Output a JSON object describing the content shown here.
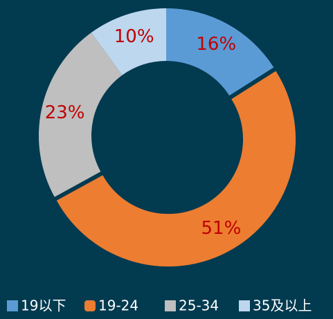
{
  "chart_data": {
    "type": "donut",
    "categories": [
      "19以下",
      "19-24",
      "25-34",
      "35及以上"
    ],
    "values": [
      16,
      51,
      23,
      10
    ],
    "value_labels": [
      "16%",
      "51%",
      "23%",
      "10%"
    ],
    "colors": [
      "#5b9bd5",
      "#ed7d31",
      "#bfbfbf",
      "#bdd7ee"
    ],
    "label_color": "#c00000",
    "legend": "bottom"
  }
}
